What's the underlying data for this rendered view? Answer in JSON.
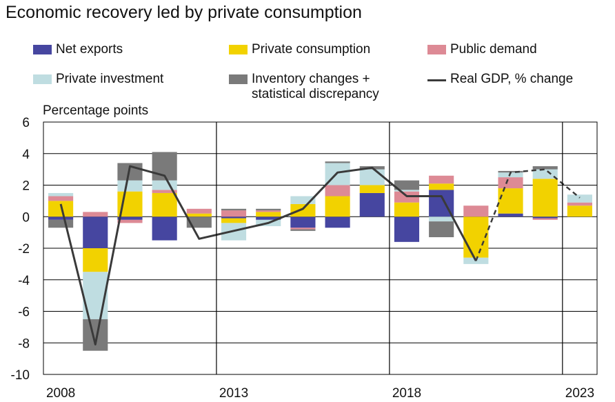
{
  "title": "Economic recovery led by private consumption",
  "legend": [
    {
      "label": "Net exports",
      "color": "#4646a0",
      "kind": "box"
    },
    {
      "label": "Private consumption",
      "color": "#f2d200",
      "kind": "box"
    },
    {
      "label": "Public demand",
      "color": "#dd8a95",
      "kind": "box"
    },
    {
      "label": "Private investment",
      "color": "#bfdde1",
      "kind": "box"
    },
    {
      "label": "Inventory changes + statistical discrepancy",
      "color": "#7a7a7a",
      "kind": "box"
    },
    {
      "label": "Real GDP, % change",
      "color": "#3a3a3a",
      "kind": "line"
    }
  ],
  "chart_data": {
    "type": "bar",
    "stacked": true,
    "title": "Economic recovery led by private consumption",
    "ylabel": "Percentage points",
    "xlabel": "",
    "ylim": [
      -10,
      6
    ],
    "yticks": [
      6,
      4,
      2,
      0,
      -2,
      -4,
      -6,
      -8,
      -10
    ],
    "grid": true,
    "legend_position": "top",
    "categories": [
      2008,
      2009,
      2010,
      2011,
      2012,
      2013,
      2014,
      2015,
      2016,
      2017,
      2018,
      2019,
      2020,
      2021,
      2022,
      2023
    ],
    "xtick_labels": [
      {
        "year": 2008,
        "label": "2008"
      },
      {
        "year": 2013,
        "label": "2013"
      },
      {
        "year": 2018,
        "label": "2018"
      },
      {
        "year": 2023,
        "label": "2023"
      }
    ],
    "separators_after": [
      2012,
      2017,
      2022
    ],
    "series": [
      {
        "name": "Net exports",
        "color": "#4646a0",
        "values": [
          -0.2,
          -2.0,
          -0.2,
          -1.5,
          0.0,
          -0.1,
          -0.2,
          -0.7,
          -0.7,
          1.5,
          -1.6,
          1.7,
          0.0,
          0.2,
          -0.1,
          0.0
        ]
      },
      {
        "name": "Private consumption",
        "color": "#f2d200",
        "values": [
          1.0,
          -1.5,
          1.6,
          1.5,
          0.2,
          -0.3,
          0.3,
          0.8,
          1.3,
          0.5,
          0.9,
          0.4,
          -2.6,
          1.6,
          2.4,
          0.7
        ]
      },
      {
        "name": "Public demand",
        "color": "#dd8a95",
        "values": [
          0.3,
          0.3,
          -0.2,
          0.2,
          0.3,
          0.4,
          0.1,
          -0.1,
          0.7,
          0.0,
          0.7,
          0.5,
          0.7,
          0.7,
          -0.1,
          0.2
        ]
      },
      {
        "name": "Private investment",
        "color": "#bfdde1",
        "values": [
          0.2,
          -3.0,
          0.7,
          0.6,
          0.0,
          -1.1,
          -0.4,
          0.5,
          1.4,
          1.0,
          0.1,
          -0.3,
          -0.4,
          0.3,
          0.6,
          0.5
        ]
      },
      {
        "name": "Inventory changes + statistical discrepancy",
        "color": "#7a7a7a",
        "values": [
          -0.5,
          -2.0,
          1.1,
          1.8,
          -0.7,
          0.1,
          0.1,
          -0.1,
          0.1,
          0.2,
          0.6,
          -1.0,
          0.0,
          0.1,
          0.2,
          0.0
        ]
      }
    ],
    "line": {
      "name": "Real GDP, % change",
      "color": "#3a3a3a",
      "values": [
        0.8,
        -8.1,
        3.2,
        2.6,
        -1.4,
        -0.9,
        -0.4,
        0.5,
        2.8,
        3.1,
        1.3,
        1.3,
        -2.8,
        2.8,
        3.0,
        1.2
      ],
      "dashed_from_index": 12
    }
  }
}
